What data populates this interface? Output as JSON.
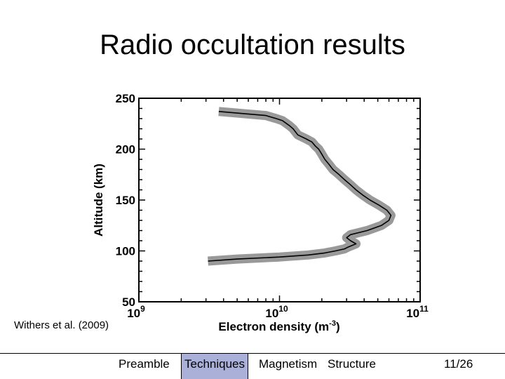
{
  "slide": {
    "title": "Radio occultation results"
  },
  "citation": "Withers et al. (2009)",
  "footer": {
    "nav": [
      "Preamble",
      "Techniques",
      "Magnetism",
      "Structure"
    ],
    "active_index": 1,
    "page": "11/26"
  },
  "chart_data": {
    "type": "line",
    "xlabel": "Electron density (m",
    "xlabel_sup": "-3",
    "xlabel_suffix": ")",
    "ylabel": "Altitude (km)",
    "x_scale": "log",
    "xlim": [
      1000000000.0,
      100000000000.0
    ],
    "ylim": [
      50,
      250
    ],
    "x_ticks": [
      {
        "base": "10",
        "exp": "9",
        "value": 1000000000.0
      },
      {
        "base": "10",
        "exp": "10",
        "value": 10000000000.0
      },
      {
        "base": "10",
        "exp": "11",
        "value": 100000000000.0
      }
    ],
    "y_ticks": [
      50,
      100,
      150,
      200,
      250
    ],
    "grid": false,
    "colors": {
      "profile": "#000000",
      "uncertainty": "#999999"
    },
    "series": [
      {
        "x": [
          3100000000.0,
          5000000000.0,
          10000000000.0,
          16000000000.0,
          21000000000.0,
          25000000000.0,
          29000000000.0,
          31000000000.0,
          35000000000.0,
          32000000000.0,
          30000000000.0,
          32000000000.0,
          42000000000.0,
          53000000000.0,
          60000000000.0,
          62000000000.0,
          58000000000.0,
          51000000000.0,
          44000000000.0,
          39000000000.0,
          35000000000.0,
          32000000000.0,
          29000000000.0,
          26500000000.0,
          24000000000.0,
          22500000000.0,
          21000000000.0,
          20000000000.0,
          19000000000.0,
          18000000000.0,
          17000000000.0,
          15500000000.0,
          13500000000.0,
          13000000000.0,
          12500000000.0,
          11800000000.0,
          11000000000.0,
          10500000000.0,
          9500000000.0,
          8000000000.0,
          5500000000.0,
          3700000000.0
        ],
        "y": [
          90,
          92,
          94,
          96,
          98,
          100,
          102,
          104,
          107,
          110,
          113,
          116,
          120,
          125,
          130,
          135,
          140,
          145,
          150,
          155,
          160,
          165,
          170,
          175,
          180,
          185,
          190,
          195,
          200,
          203,
          207,
          210,
          214,
          217,
          220,
          223,
          226,
          228,
          230,
          233,
          235,
          237
        ]
      }
    ]
  }
}
